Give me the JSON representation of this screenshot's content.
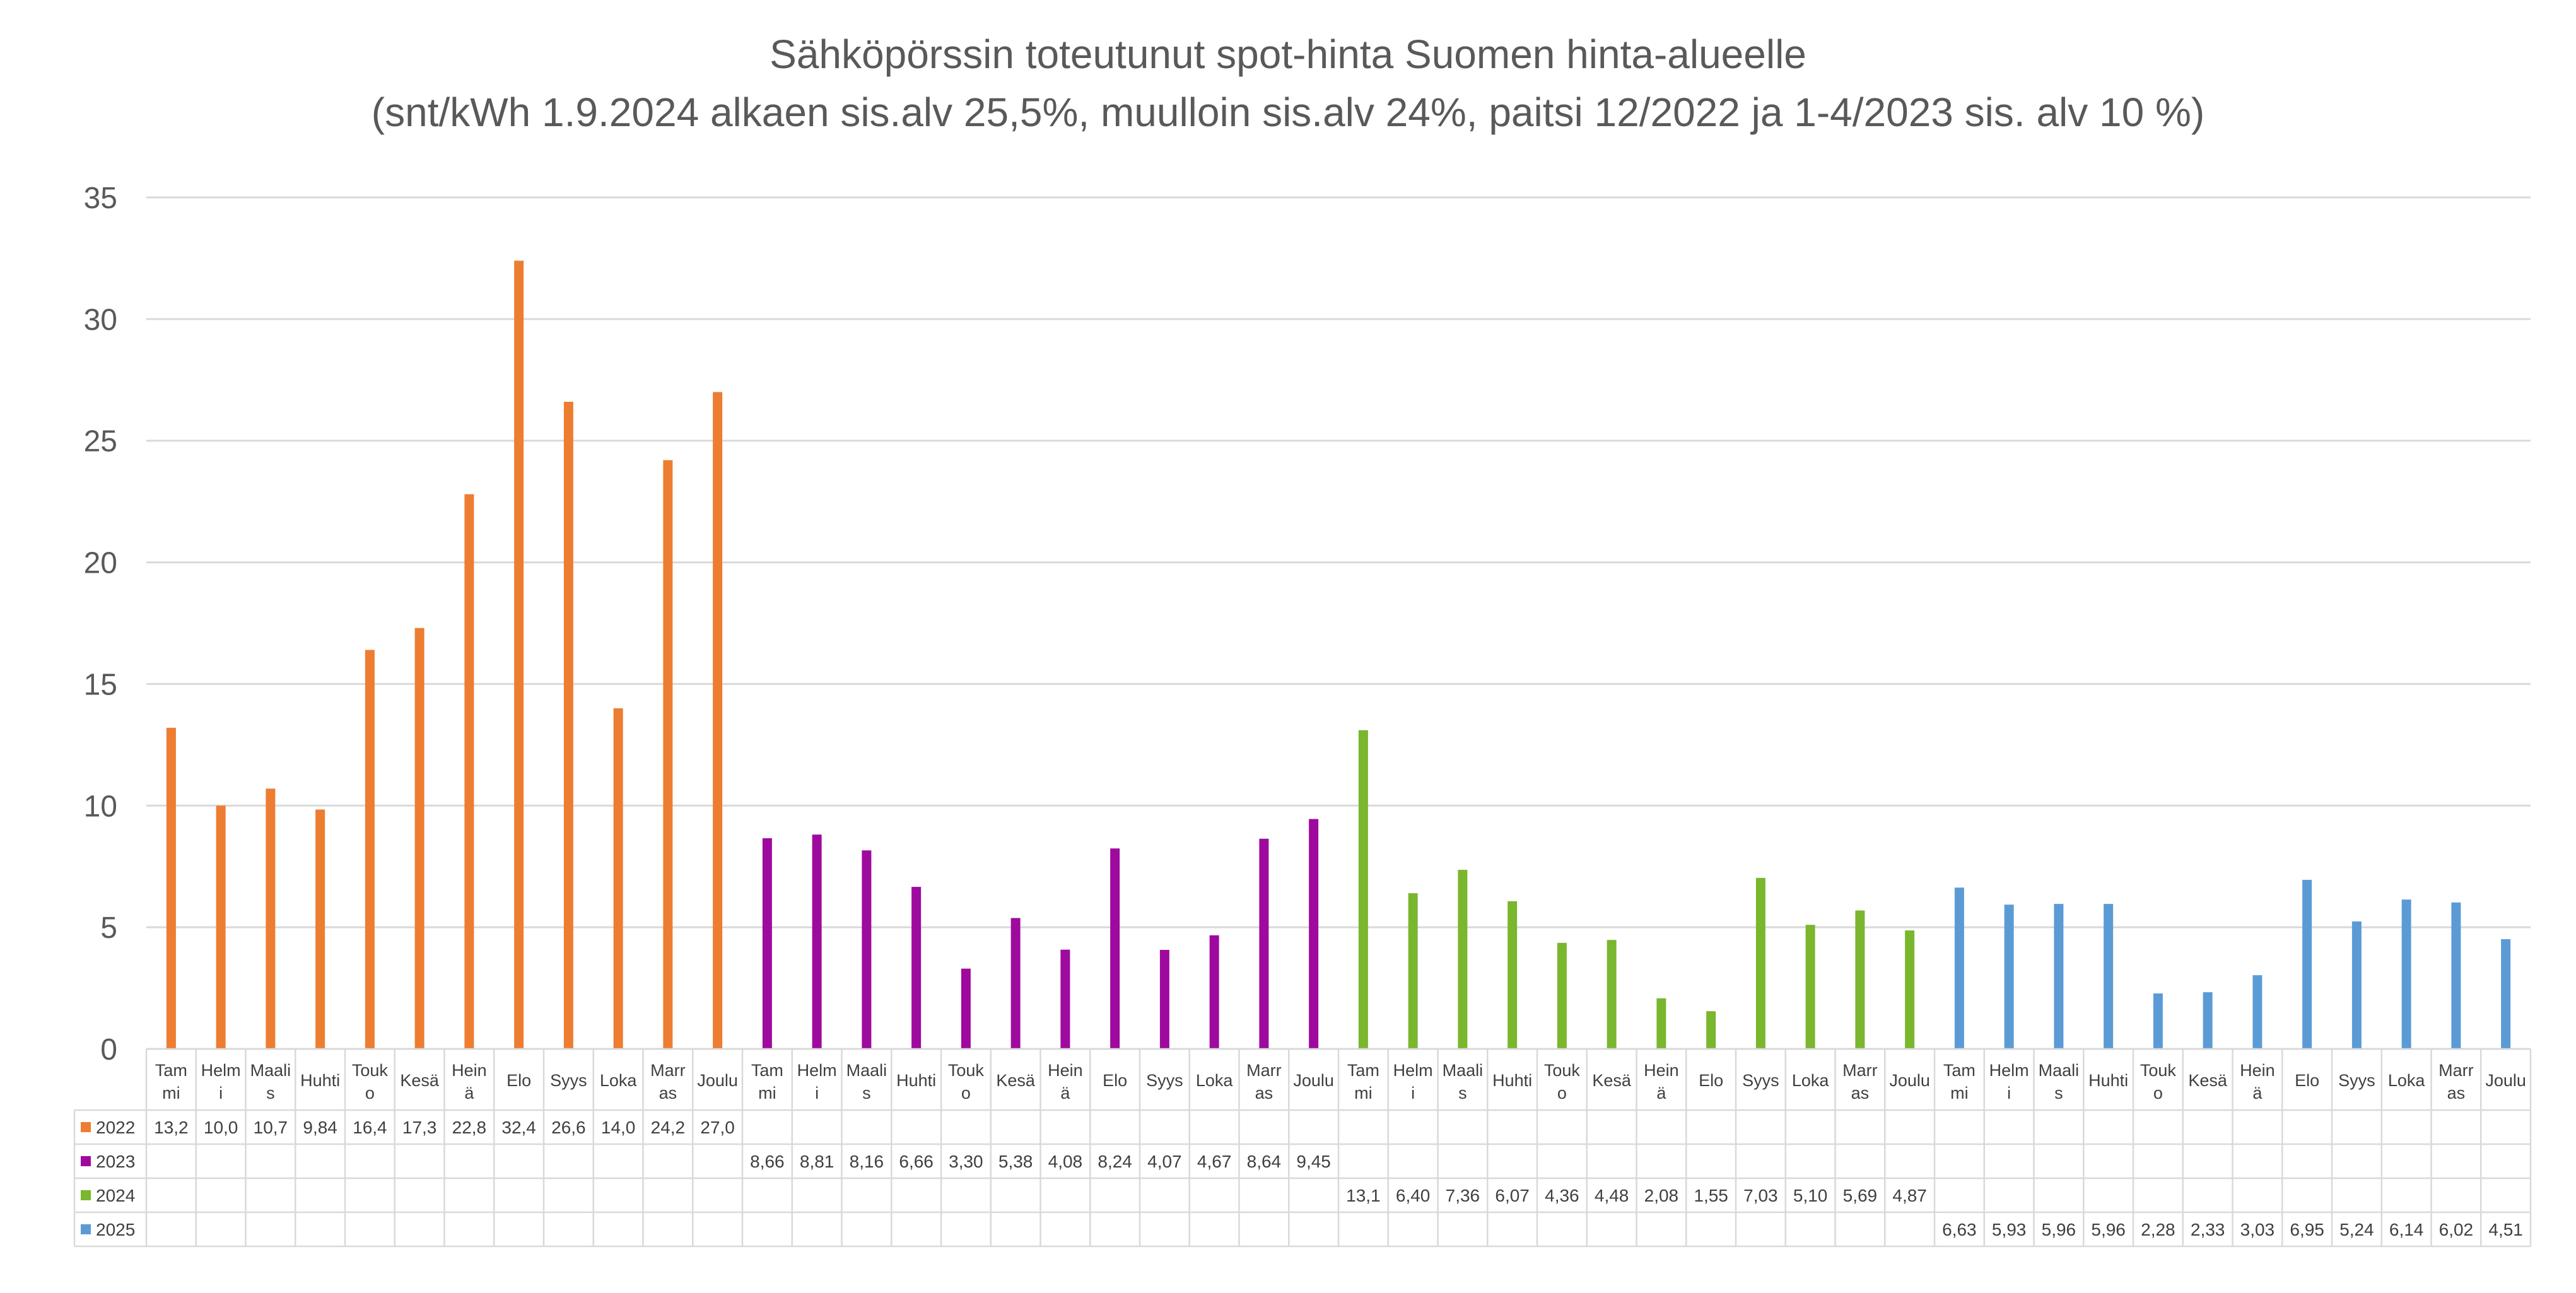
{
  "chart_data": {
    "type": "bar",
    "title": "Sähköpörssin toteutunut spot-hinta Suomen hinta-alueelle",
    "subtitle": "(snt/kWh 1.9.2024 alkaen sis.alv 25,5%, muulloin sis.alv 24%, paitsi 12/2022 ja 1-4/2023 sis. alv 10 %)",
    "xlabel": "",
    "ylabel": "",
    "ylim": [
      0,
      35
    ],
    "yticks": [
      "0",
      "5",
      "10",
      "15",
      "20",
      "25",
      "30",
      "35"
    ],
    "grid": true,
    "legend": "data-table-left",
    "months": [
      [
        "Tam",
        "mi"
      ],
      [
        "Helm",
        "i"
      ],
      [
        "Maali",
        "s"
      ],
      [
        "Huhti"
      ],
      [
        "Touk",
        "o"
      ],
      [
        "Kesä"
      ],
      [
        "Hein",
        "ä"
      ],
      [
        "Elo"
      ],
      [
        "Syys"
      ],
      [
        "Loka"
      ],
      [
        "Marr",
        "as"
      ],
      [
        "Joulu"
      ]
    ],
    "series": [
      {
        "name": "2022",
        "color": "#ED7D31",
        "values": [
          13.2,
          10.0,
          10.7,
          9.84,
          16.4,
          17.3,
          22.8,
          32.4,
          26.6,
          14.0,
          24.2,
          27.0
        ],
        "labels": [
          "13,2",
          "10,0",
          "10,7",
          "9,84",
          "16,4",
          "17,3",
          "22,8",
          "32,4",
          "26,6",
          "14,0",
          "24,2",
          "27,0"
        ]
      },
      {
        "name": "2023",
        "color": "#9E0A9E",
        "values": [
          8.66,
          8.81,
          8.16,
          6.66,
          3.3,
          5.38,
          4.08,
          8.24,
          4.07,
          4.67,
          8.64,
          9.45
        ],
        "labels": [
          "8,66",
          "8,81",
          "8,16",
          "6,66",
          "3,30",
          "5,38",
          "4,08",
          "8,24",
          "4,07",
          "4,67",
          "8,64",
          "9,45"
        ]
      },
      {
        "name": "2024",
        "color": "#7AB62E",
        "values": [
          13.1,
          6.4,
          7.36,
          6.07,
          4.36,
          4.48,
          2.08,
          1.55,
          7.03,
          5.1,
          5.69,
          4.87
        ],
        "labels": [
          "13,1",
          "6,40",
          "7,36",
          "6,07",
          "4,36",
          "4,48",
          "2,08",
          "1,55",
          "7,03",
          "5,10",
          "5,69",
          "4,87"
        ]
      },
      {
        "name": "2025",
        "color": "#5B9BD5",
        "values": [
          6.63,
          5.93,
          5.96,
          5.96,
          2.28,
          2.33,
          3.03,
          6.95,
          5.24,
          6.14,
          6.02,
          4.51
        ],
        "labels": [
          "6,63",
          "5,93",
          "5,96",
          "5,96",
          "2,28",
          "2,33",
          "3,03",
          "6,95",
          "5,24",
          "6,14",
          "6,02",
          "4,51"
        ]
      }
    ]
  }
}
